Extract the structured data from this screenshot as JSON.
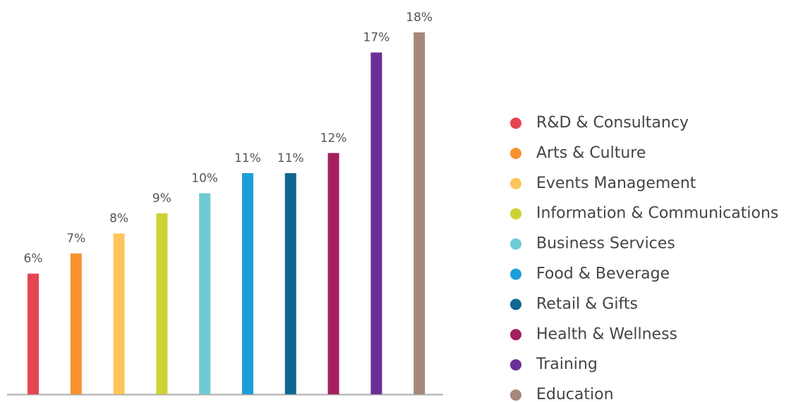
{
  "chart_data": {
    "type": "bar",
    "categories": [
      "R&D & Consultancy",
      "Arts & Culture",
      "Events Management",
      "Information & Communications",
      "Business Services",
      "Food & Beverage",
      "Retail & Gifts",
      "Health & Wellness",
      "Training",
      "Education"
    ],
    "values": [
      6,
      7,
      8,
      9,
      10,
      11,
      11,
      12,
      17,
      18
    ],
    "value_labels": [
      "6%",
      "7%",
      "8%",
      "9%",
      "10%",
      "11%",
      "11%",
      "12%",
      "17%",
      "18%"
    ],
    "colors": [
      "#e64553",
      "#f7922f",
      "#fdc55a",
      "#cdd335",
      "#6fcad3",
      "#1b9fd8",
      "#0f6891",
      "#a3205d",
      "#6b2e96",
      "#a3887b"
    ]
  }
}
